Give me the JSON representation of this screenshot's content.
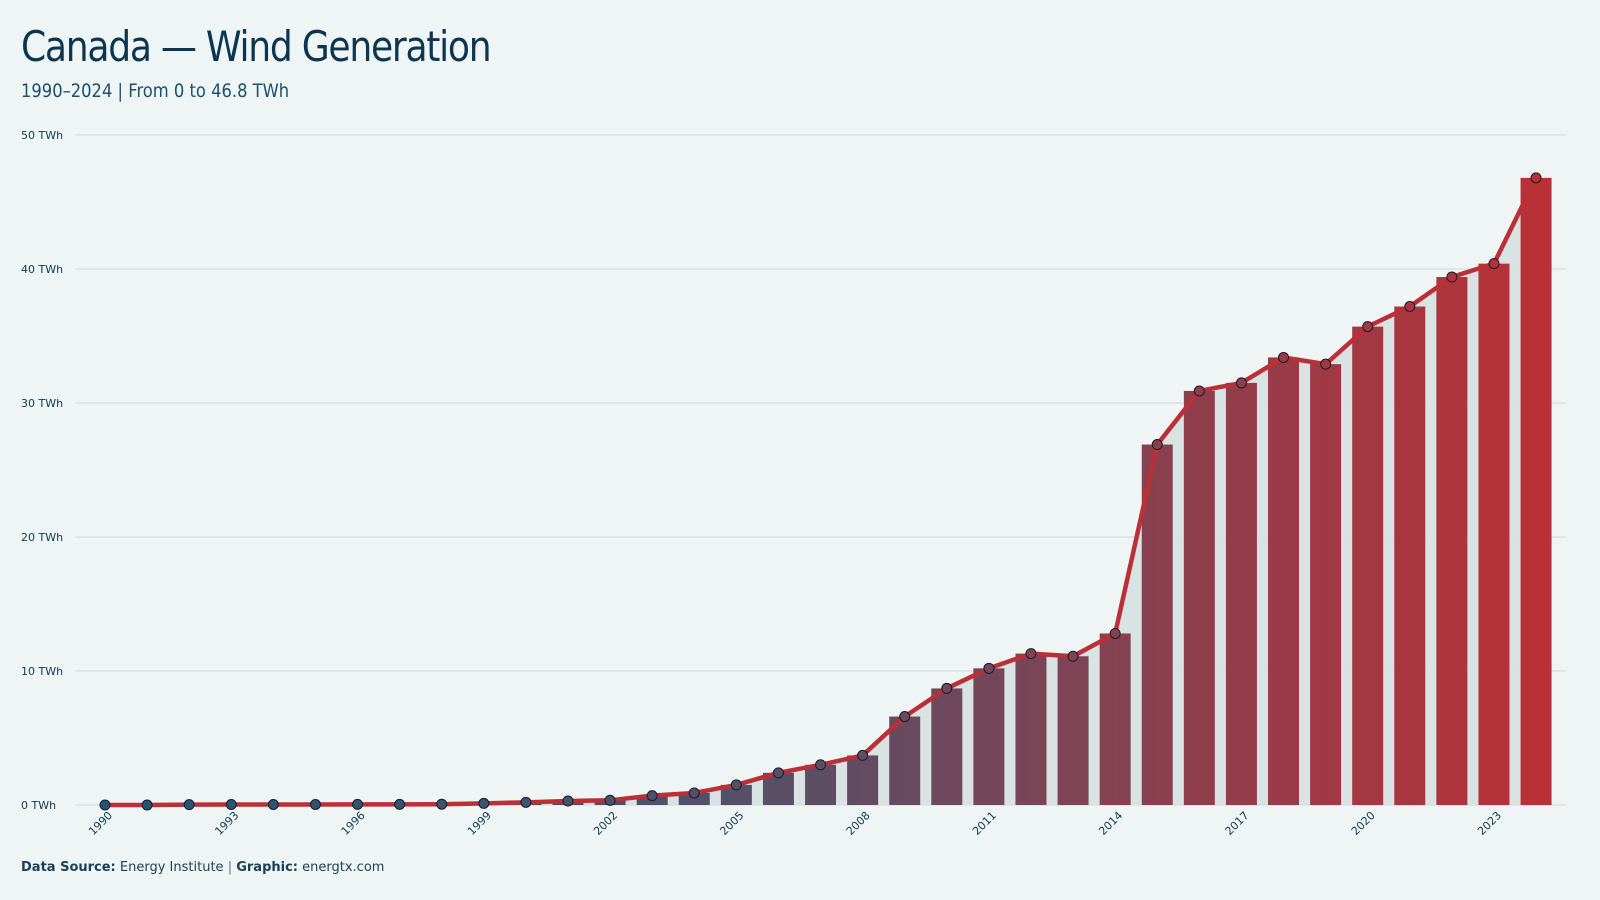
{
  "header": {
    "title": "Canada — Wind Generation",
    "subtitle": "1990–2024 | From 0 to 46.8 TWh"
  },
  "footer": {
    "source_label": "Data Source:",
    "source_value": "Energy Institute",
    "separator": "|",
    "graphic_label": "Graphic:",
    "graphic_value": "energtx.com"
  },
  "colors": {
    "background": "#eff5f5",
    "bar_start": "#1f5576",
    "bar_end": "#bb3036",
    "line": "#bb3036",
    "grid": "#d9e2e4",
    "area_fill": "#d6e1e1"
  },
  "chart_data": {
    "type": "bar",
    "title": "Canada — Wind Generation",
    "subtitle": "1990–2024 | From 0 to 46.8 TWh",
    "xlabel": "",
    "ylabel": "",
    "unit": "TWh",
    "ylim": [
      0,
      50
    ],
    "yticks": [
      0,
      10,
      20,
      30,
      40,
      50
    ],
    "ytick_labels": [
      "0 TWh",
      "10 TWh",
      "20 TWh",
      "30 TWh",
      "40 TWh",
      "50 TWh"
    ],
    "xtick_labels": [
      "1990",
      "1993",
      "1996",
      "1999",
      "2002",
      "2005",
      "2008",
      "2011",
      "2014",
      "2017",
      "2020",
      "2023"
    ],
    "grid": true,
    "legend": "none",
    "overlay": "line with point markers over bars, same values",
    "categories": [
      "1990",
      "1991",
      "1992",
      "1993",
      "1994",
      "1995",
      "1996",
      "1997",
      "1998",
      "1999",
      "2000",
      "2001",
      "2002",
      "2003",
      "2004",
      "2005",
      "2006",
      "2007",
      "2008",
      "2009",
      "2010",
      "2011",
      "2012",
      "2013",
      "2014",
      "2015",
      "2016",
      "2017",
      "2018",
      "2019",
      "2020",
      "2021",
      "2022",
      "2023",
      "2024"
    ],
    "values": [
      0.0,
      0.0,
      0.03,
      0.04,
      0.04,
      0.04,
      0.05,
      0.05,
      0.06,
      0.12,
      0.2,
      0.3,
      0.35,
      0.7,
      0.9,
      1.5,
      2.4,
      3.0,
      3.7,
      6.6,
      8.7,
      10.2,
      11.3,
      11.1,
      12.8,
      26.9,
      30.9,
      31.5,
      33.4,
      32.9,
      35.7,
      37.2,
      39.4,
      40.4,
      46.8
    ]
  }
}
